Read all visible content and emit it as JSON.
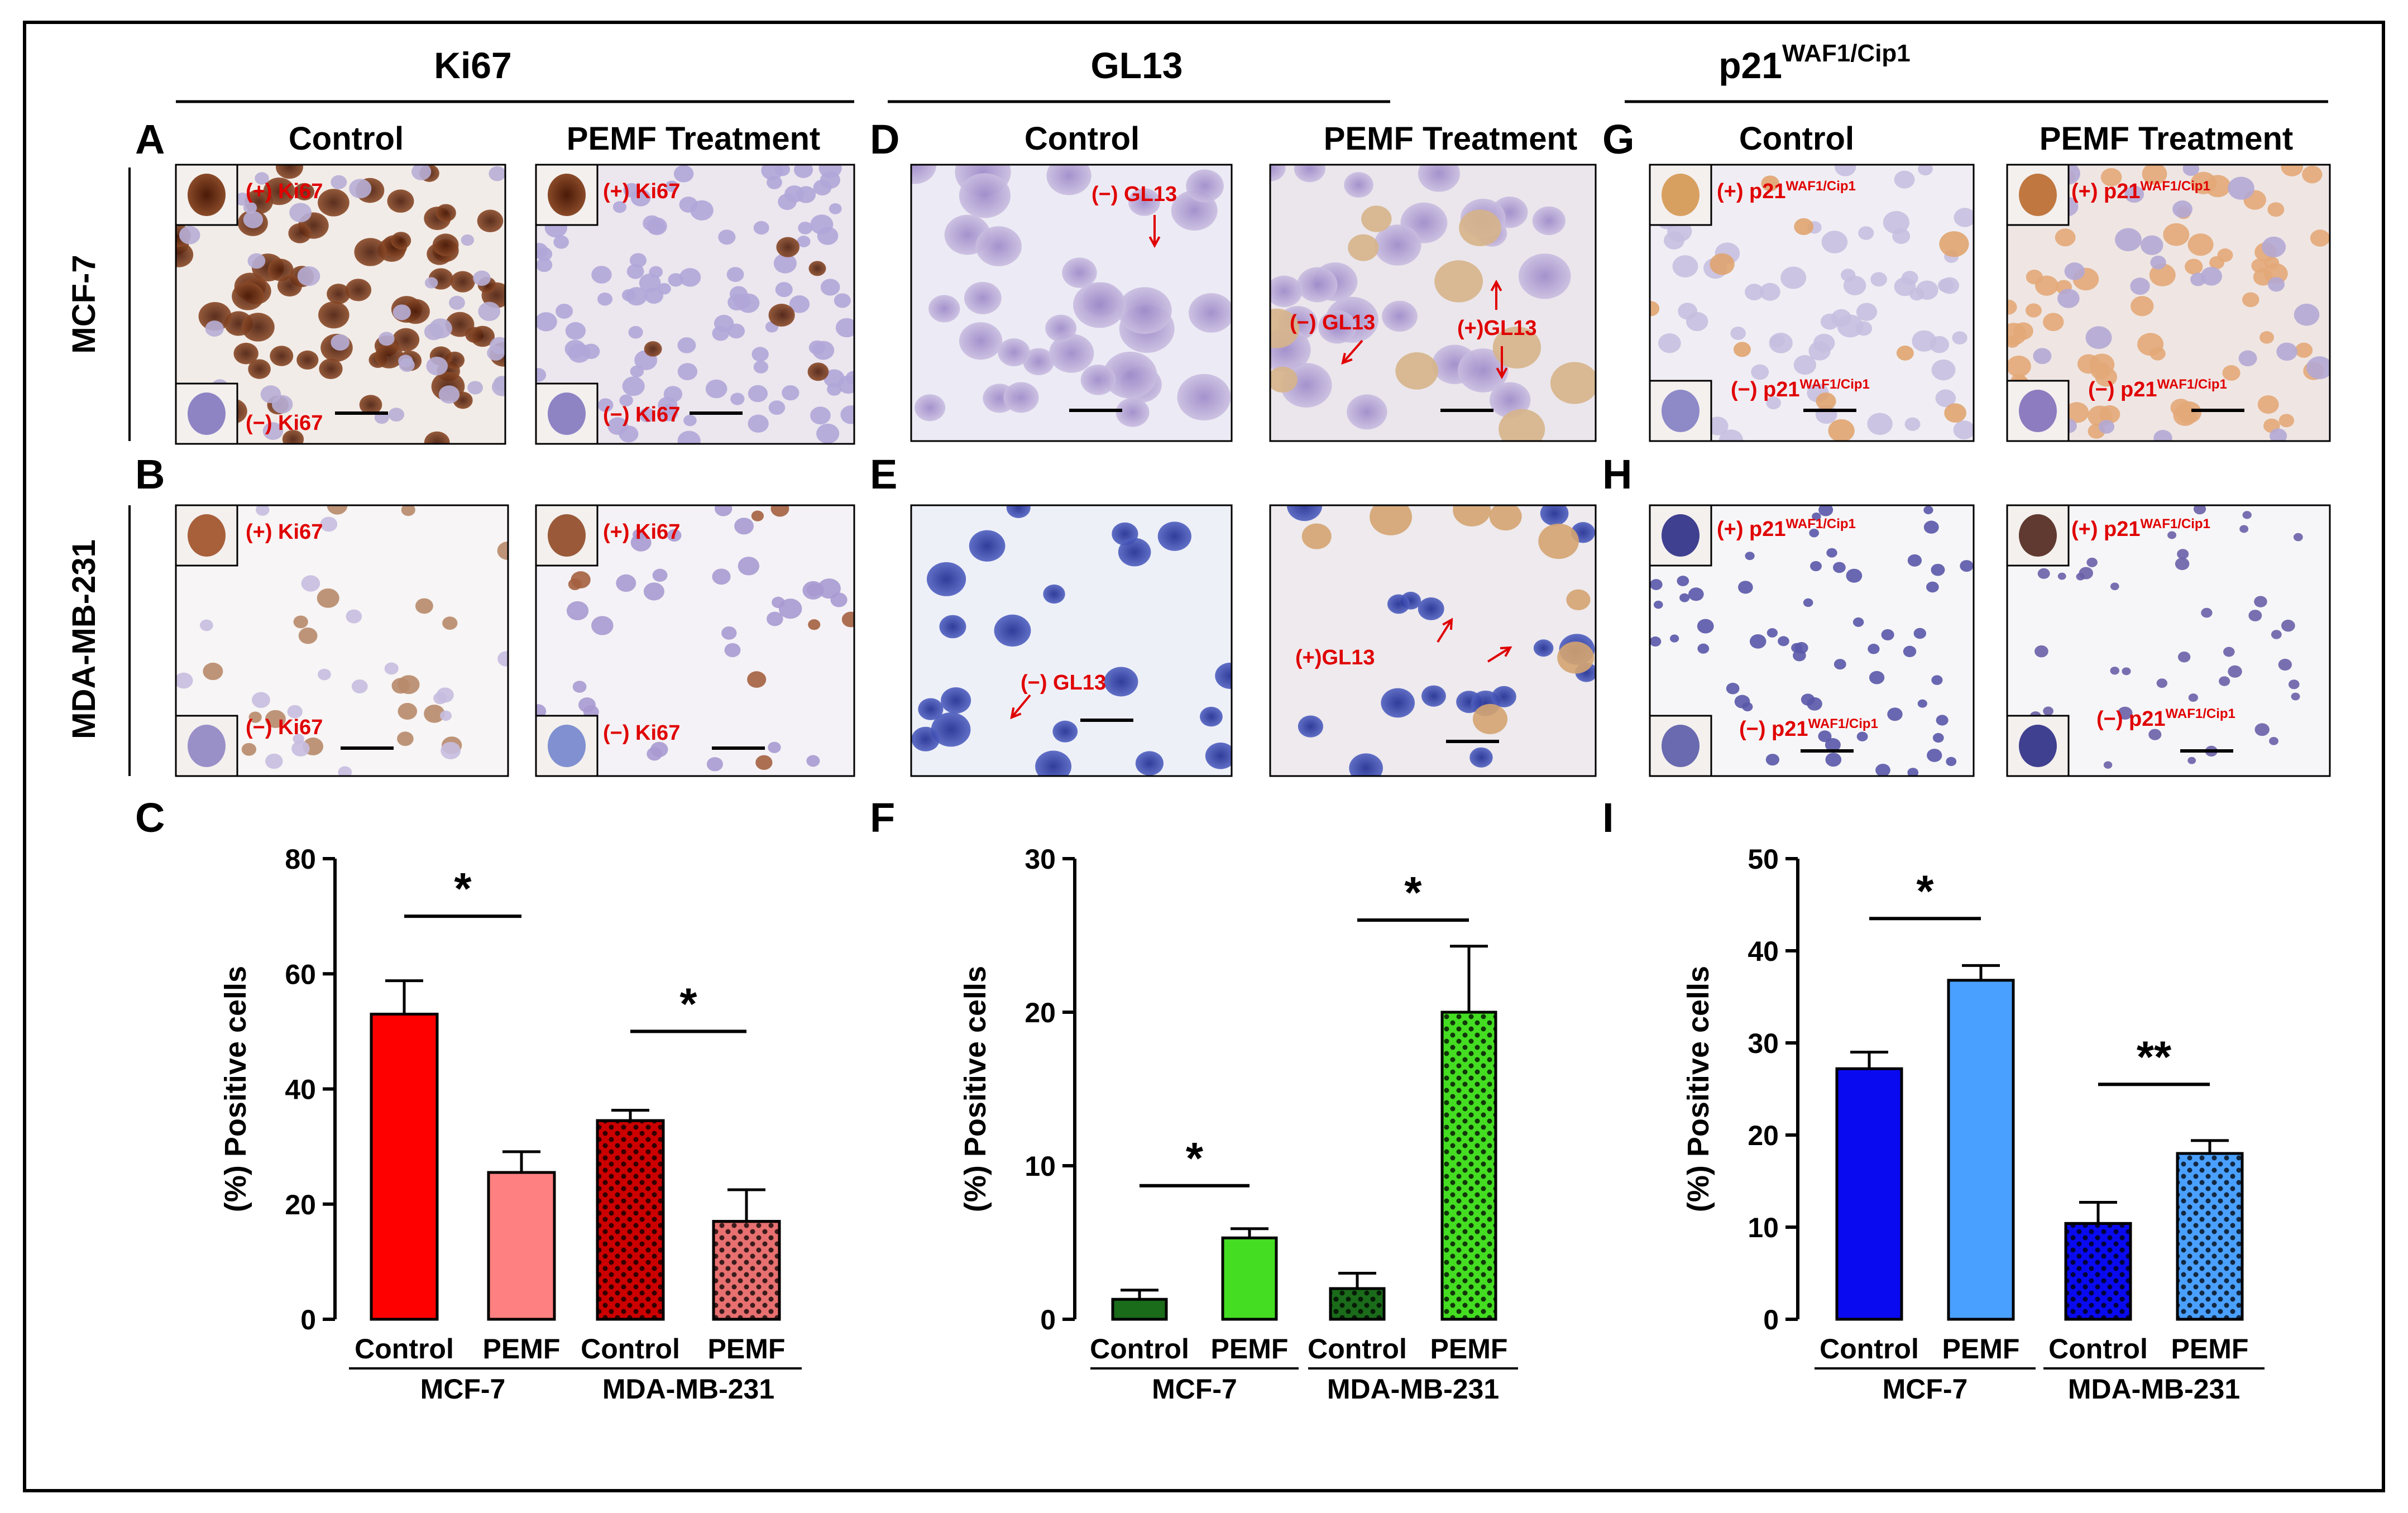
{
  "figure": {
    "markers": [
      "Ki67",
      "GL13",
      "p21"
    ],
    "marker_superscript": "WAF1/Cip1",
    "columns": [
      "Control",
      "PEMF Treatment"
    ],
    "rows": [
      "MCF-7",
      "MDA-MB-231"
    ],
    "panel_letters": [
      "A",
      "B",
      "C",
      "D",
      "E",
      "F",
      "G",
      "H",
      "I"
    ],
    "labels": {
      "pos_ki67": "(+) Ki67",
      "neg_ki67": "(−) Ki67",
      "neg_gl13": "(−) GL13",
      "pos_gl13": "(+)GL13",
      "pos_p21": "(+) p21",
      "neg_p21": "(−) p21"
    }
  },
  "chart_data": [
    {
      "type": "bar",
      "panel": "C",
      "ylabel": "(%) Positive cells",
      "ylim": [
        0,
        80
      ],
      "yticks": [
        0,
        20,
        40,
        60,
        80
      ],
      "categories": [
        "Control",
        "PEMF",
        "Control",
        "PEMF"
      ],
      "groups": [
        "MCF-7",
        "MDA-MB-231"
      ],
      "values": [
        53,
        25.5,
        34.5,
        17
      ],
      "errors": [
        5.8,
        3.6,
        1.8,
        5.5
      ],
      "colors": [
        "#ff0000",
        "#ff8080",
        "#cc0000",
        "#e87070"
      ],
      "patterns": [
        false,
        false,
        true,
        true
      ],
      "significance": [
        {
          "label": "*",
          "between": [
            0,
            1
          ],
          "level": 70
        },
        {
          "label": "*",
          "between": [
            2,
            3
          ],
          "level": 50
        }
      ]
    },
    {
      "type": "bar",
      "panel": "F",
      "ylabel": "(%) Positive cells",
      "ylim": [
        0,
        30
      ],
      "yticks": [
        0,
        10,
        20,
        30
      ],
      "categories": [
        "Control",
        "PEMF",
        "Control",
        "PEMF"
      ],
      "groups": [
        "MCF-7",
        "MDA-MB-231"
      ],
      "values": [
        1.3,
        5.3,
        2.0,
        20
      ],
      "errors": [
        0.6,
        0.6,
        1.0,
        4.3
      ],
      "colors": [
        "#1a6b1a",
        "#44dd22",
        "#1a6b1a",
        "#44dd22"
      ],
      "patterns": [
        false,
        false,
        true,
        true
      ],
      "significance": [
        {
          "label": "*",
          "between": [
            0,
            1
          ],
          "level": 8.7
        },
        {
          "label": "*",
          "between": [
            2,
            3
          ],
          "level": 26
        }
      ]
    },
    {
      "type": "bar",
      "panel": "I",
      "ylabel": "(%) Positive cells",
      "ylim": [
        0,
        50
      ],
      "yticks": [
        0,
        10,
        20,
        30,
        40,
        50
      ],
      "categories": [
        "Control",
        "PEMF",
        "Control",
        "PEMF"
      ],
      "groups": [
        "MCF-7",
        "MDA-MB-231"
      ],
      "values": [
        27.2,
        36.8,
        10.4,
        18
      ],
      "errors": [
        1.8,
        1.6,
        2.3,
        1.4
      ],
      "colors": [
        "#0a0af0",
        "#4aa0ff",
        "#0a0af0",
        "#4aa0ff"
      ],
      "patterns": [
        false,
        false,
        true,
        true
      ],
      "significance": [
        {
          "label": "*",
          "between": [
            0,
            1
          ],
          "level": 43.5
        },
        {
          "label": "**",
          "between": [
            2,
            3
          ],
          "level": 25.5
        }
      ]
    }
  ]
}
